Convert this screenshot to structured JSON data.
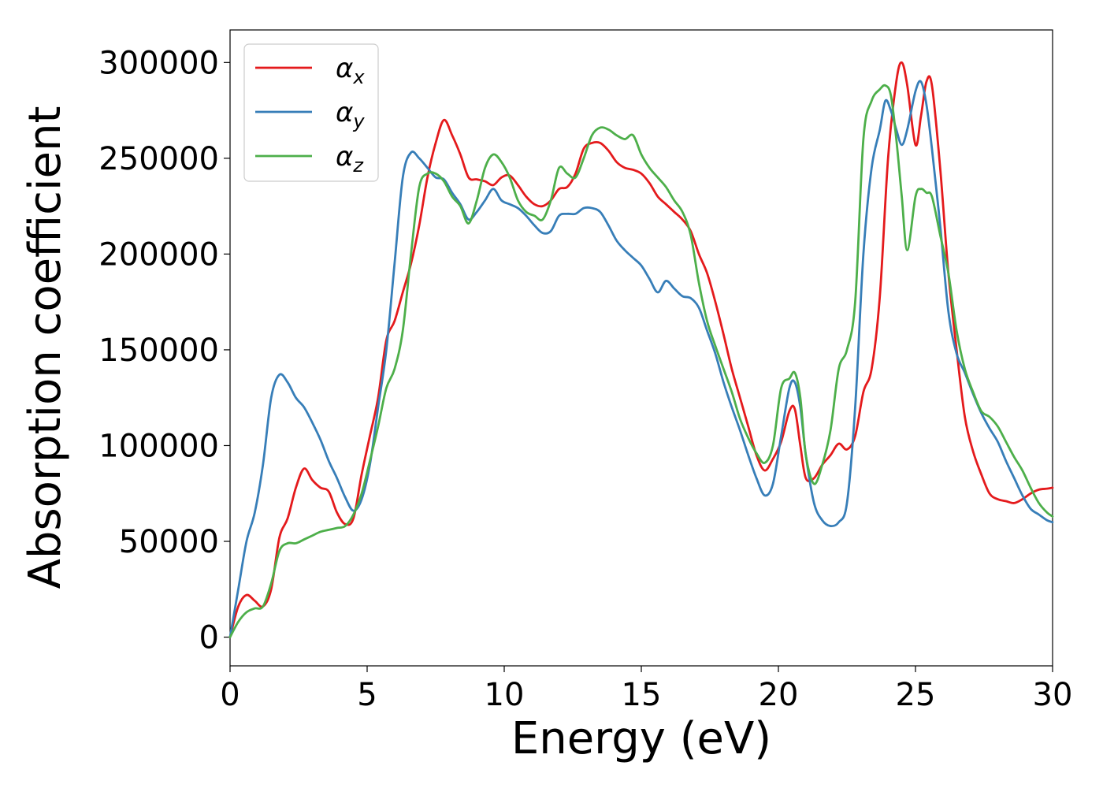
{
  "chart_data": {
    "type": "line",
    "xlabel": "Energy (eV)",
    "ylabel": "Absorption coefficient",
    "xlim": [
      0,
      30
    ],
    "ylim": [
      -15000,
      317000
    ],
    "xticks": [
      0,
      5,
      10,
      15,
      20,
      25,
      30
    ],
    "xtick_labels": [
      "0",
      "5",
      "10",
      "15",
      "20",
      "25",
      "30"
    ],
    "yticks": [
      0,
      50000,
      100000,
      150000,
      200000,
      250000,
      300000
    ],
    "ytick_labels": [
      "0",
      "50000",
      "100000",
      "150000",
      "200000",
      "250000",
      "300000"
    ],
    "legend_position": "top-left",
    "grid": false,
    "series": [
      {
        "name": "α",
        "subscript": "x",
        "color": "#e41a1c",
        "x": [
          0,
          0.3,
          0.6,
          0.9,
          1.2,
          1.5,
          1.8,
          2.1,
          2.4,
          2.7,
          3.0,
          3.3,
          3.6,
          3.9,
          4.2,
          4.5,
          4.8,
          5.1,
          5.4,
          5.7,
          6.0,
          6.3,
          6.6,
          6.9,
          7.2,
          7.5,
          7.8,
          8.1,
          8.4,
          8.7,
          9.0,
          9.3,
          9.6,
          9.9,
          10.2,
          10.5,
          10.8,
          11.1,
          11.4,
          11.7,
          12.0,
          12.3,
          12.6,
          12.9,
          13.2,
          13.5,
          13.8,
          14.1,
          14.4,
          14.7,
          15.0,
          15.3,
          15.6,
          15.9,
          16.2,
          16.5,
          16.8,
          17.1,
          17.4,
          17.7,
          18.0,
          18.3,
          18.6,
          18.9,
          19.2,
          19.5,
          19.8,
          20.1,
          20.4,
          20.6,
          20.8,
          21.0,
          21.3,
          21.6,
          21.9,
          22.2,
          22.5,
          22.8,
          23.1,
          23.4,
          23.7,
          24.0,
          24.3,
          24.5,
          24.7,
          25.0,
          25.2,
          25.4,
          25.6,
          25.9,
          26.2,
          26.5,
          26.8,
          27.1,
          27.4,
          27.7,
          28.0,
          28.3,
          28.6,
          28.9,
          29.2,
          29.5,
          29.8,
          30.0
        ],
        "y": [
          0,
          16000,
          22000,
          19000,
          16000,
          25000,
          52000,
          62000,
          78000,
          88000,
          82000,
          78000,
          76000,
          65000,
          59000,
          62000,
          85000,
          105000,
          125000,
          155000,
          165000,
          180000,
          195000,
          215000,
          240000,
          258000,
          270000,
          262000,
          252000,
          240000,
          239000,
          238000,
          236000,
          240000,
          241000,
          236000,
          230000,
          226000,
          225000,
          228000,
          234000,
          235000,
          242000,
          255000,
          258000,
          258000,
          254000,
          248000,
          245000,
          244000,
          242000,
          237000,
          230000,
          226000,
          222000,
          218000,
          212000,
          200000,
          190000,
          175000,
          158000,
          140000,
          125000,
          110000,
          95000,
          87000,
          93000,
          102000,
          118000,
          119000,
          100000,
          83000,
          83000,
          90000,
          95000,
          101000,
          98000,
          105000,
          128000,
          140000,
          178000,
          250000,
          290000,
          300000,
          288000,
          257000,
          272000,
          290000,
          288000,
          245000,
          190000,
          150000,
          115000,
          97000,
          85000,
          75000,
          72000,
          71000,
          70000,
          72000,
          75000,
          77000,
          77500,
          78000
        ]
      },
      {
        "name": "α",
        "subscript": "y",
        "color": "#377eb8",
        "x": [
          0,
          0.3,
          0.6,
          0.9,
          1.2,
          1.5,
          1.8,
          2.1,
          2.4,
          2.7,
          3.0,
          3.3,
          3.6,
          3.9,
          4.2,
          4.5,
          4.8,
          5.1,
          5.4,
          5.7,
          6.0,
          6.3,
          6.6,
          6.9,
          7.2,
          7.5,
          7.8,
          8.1,
          8.4,
          8.7,
          9.0,
          9.3,
          9.6,
          9.9,
          10.2,
          10.5,
          10.8,
          11.1,
          11.4,
          11.7,
          12.0,
          12.3,
          12.6,
          12.9,
          13.2,
          13.5,
          13.8,
          14.1,
          14.4,
          14.7,
          15.0,
          15.3,
          15.6,
          15.9,
          16.2,
          16.5,
          16.8,
          17.1,
          17.4,
          17.7,
          18.0,
          18.3,
          18.6,
          18.9,
          19.2,
          19.5,
          19.8,
          20.1,
          20.4,
          20.6,
          20.8,
          21.0,
          21.3,
          21.6,
          21.9,
          22.2,
          22.5,
          22.8,
          23.1,
          23.4,
          23.7,
          23.9,
          24.1,
          24.3,
          24.5,
          24.7,
          25.0,
          25.2,
          25.4,
          25.6,
          25.9,
          26.2,
          26.5,
          26.8,
          27.1,
          27.4,
          27.7,
          28.0,
          28.3,
          28.6,
          28.9,
          29.2,
          29.5,
          29.8,
          30.0
        ],
        "y": [
          0,
          25000,
          50000,
          65000,
          90000,
          125000,
          137000,
          133000,
          125000,
          120000,
          112000,
          103000,
          92000,
          83000,
          73000,
          66000,
          72000,
          90000,
          120000,
          150000,
          195000,
          240000,
          253000,
          250000,
          245000,
          240000,
          239000,
          232000,
          226000,
          218000,
          222000,
          228000,
          234000,
          228000,
          226000,
          224000,
          220000,
          215000,
          211000,
          212000,
          220000,
          221000,
          221000,
          224000,
          224000,
          222000,
          215000,
          207000,
          202000,
          198000,
          194000,
          187000,
          180000,
          186000,
          182000,
          178000,
          177000,
          172000,
          160000,
          148000,
          133000,
          120000,
          108000,
          95000,
          83000,
          74000,
          80000,
          105000,
          130000,
          133000,
          120000,
          95000,
          70000,
          61000,
          58000,
          60000,
          70000,
          120000,
          200000,
          245000,
          265000,
          280000,
          275000,
          265000,
          257000,
          265000,
          285000,
          290000,
          278000,
          255000,
          215000,
          170000,
          148000,
          138000,
          127000,
          117000,
          109000,
          102000,
          92000,
          83000,
          74000,
          67000,
          64000,
          61000,
          60000
        ]
      },
      {
        "name": "α",
        "subscript": "z",
        "color": "#4daf4a",
        "x": [
          0,
          0.3,
          0.6,
          0.9,
          1.2,
          1.5,
          1.8,
          2.1,
          2.4,
          2.7,
          3.0,
          3.3,
          3.6,
          3.9,
          4.2,
          4.5,
          4.8,
          5.1,
          5.4,
          5.7,
          6.0,
          6.3,
          6.6,
          6.9,
          7.2,
          7.5,
          7.8,
          8.1,
          8.4,
          8.7,
          9.0,
          9.3,
          9.6,
          9.9,
          10.2,
          10.5,
          10.8,
          11.1,
          11.4,
          11.7,
          12.0,
          12.3,
          12.6,
          12.9,
          13.2,
          13.5,
          13.8,
          14.1,
          14.4,
          14.7,
          15.0,
          15.3,
          15.6,
          15.9,
          16.2,
          16.5,
          16.8,
          17.1,
          17.4,
          17.7,
          18.0,
          18.3,
          18.6,
          18.9,
          19.2,
          19.5,
          19.8,
          20.1,
          20.4,
          20.6,
          20.8,
          21.0,
          21.3,
          21.6,
          21.9,
          22.2,
          22.5,
          22.8,
          23.1,
          23.4,
          23.7,
          23.9,
          24.1,
          24.3,
          24.5,
          24.7,
          25.0,
          25.2,
          25.4,
          25.6,
          25.9,
          26.2,
          26.5,
          26.8,
          27.1,
          27.4,
          27.7,
          28.0,
          28.3,
          28.6,
          28.9,
          29.2,
          29.5,
          29.8,
          30.0
        ],
        "y": [
          0,
          8000,
          13000,
          15000,
          16000,
          28000,
          45000,
          49000,
          49000,
          51000,
          53000,
          55000,
          56000,
          57000,
          58000,
          64000,
          75000,
          92000,
          110000,
          130000,
          140000,
          160000,
          200000,
          235000,
          242000,
          242000,
          238000,
          230000,
          225000,
          216000,
          228000,
          245000,
          252000,
          248000,
          240000,
          228000,
          222000,
          220000,
          218000,
          228000,
          245000,
          242000,
          240000,
          250000,
          262000,
          266000,
          265000,
          262000,
          260000,
          262000,
          252000,
          245000,
          240000,
          235000,
          228000,
          222000,
          210000,
          185000,
          165000,
          152000,
          140000,
          128000,
          114000,
          104000,
          96000,
          91000,
          100000,
          130000,
          135000,
          138000,
          125000,
          95000,
          80000,
          90000,
          108000,
          140000,
          150000,
          175000,
          260000,
          280000,
          286000,
          288000,
          283000,
          260000,
          230000,
          202000,
          230000,
          234000,
          232000,
          230000,
          210000,
          190000,
          160000,
          140000,
          128000,
          118000,
          115000,
          110000,
          102000,
          94000,
          87000,
          78000,
          70000,
          65000,
          63000
        ]
      }
    ]
  }
}
